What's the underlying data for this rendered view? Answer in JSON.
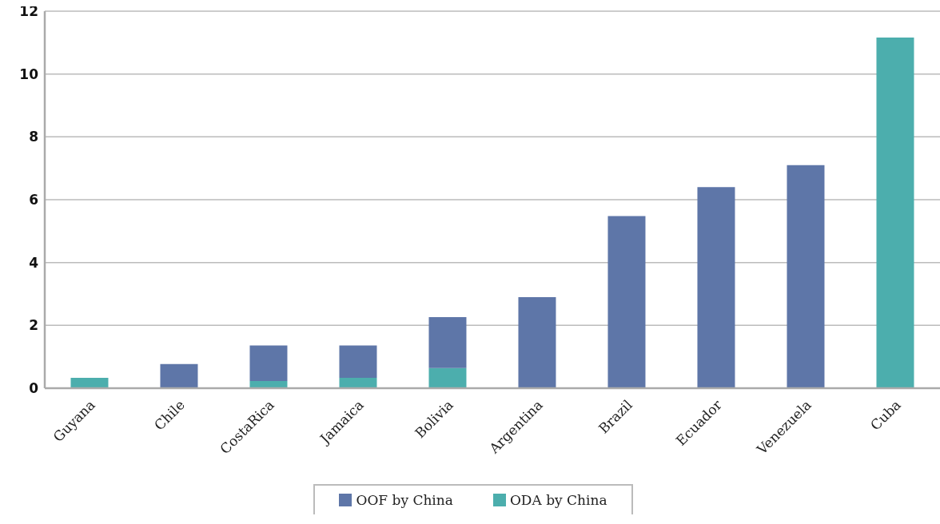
{
  "chart_data": {
    "type": "bar",
    "stacked": true,
    "categories": [
      "Guyana",
      "Chile",
      "CostaRica",
      "Jamaica",
      "Bolivia",
      "Argentina",
      "Brazil",
      "Ecuador",
      "Venezuela",
      "Cuba"
    ],
    "series": [
      {
        "name": "ODA by China",
        "color": "#4caead",
        "values": [
          0.33,
          null,
          0.23,
          0.33,
          0.64,
          null,
          null,
          null,
          null,
          11.16
        ]
      },
      {
        "name": "OOF by China",
        "color": "#5e76a8",
        "values": [
          null,
          0.77,
          1.13,
          1.03,
          1.62,
          2.9,
          5.48,
          6.4,
          7.1,
          null
        ]
      }
    ],
    "ylim": [
      0,
      12
    ],
    "yticks": [
      0,
      2,
      4,
      6,
      8,
      10,
      12
    ],
    "grid": "y",
    "legend": "bottom"
  }
}
